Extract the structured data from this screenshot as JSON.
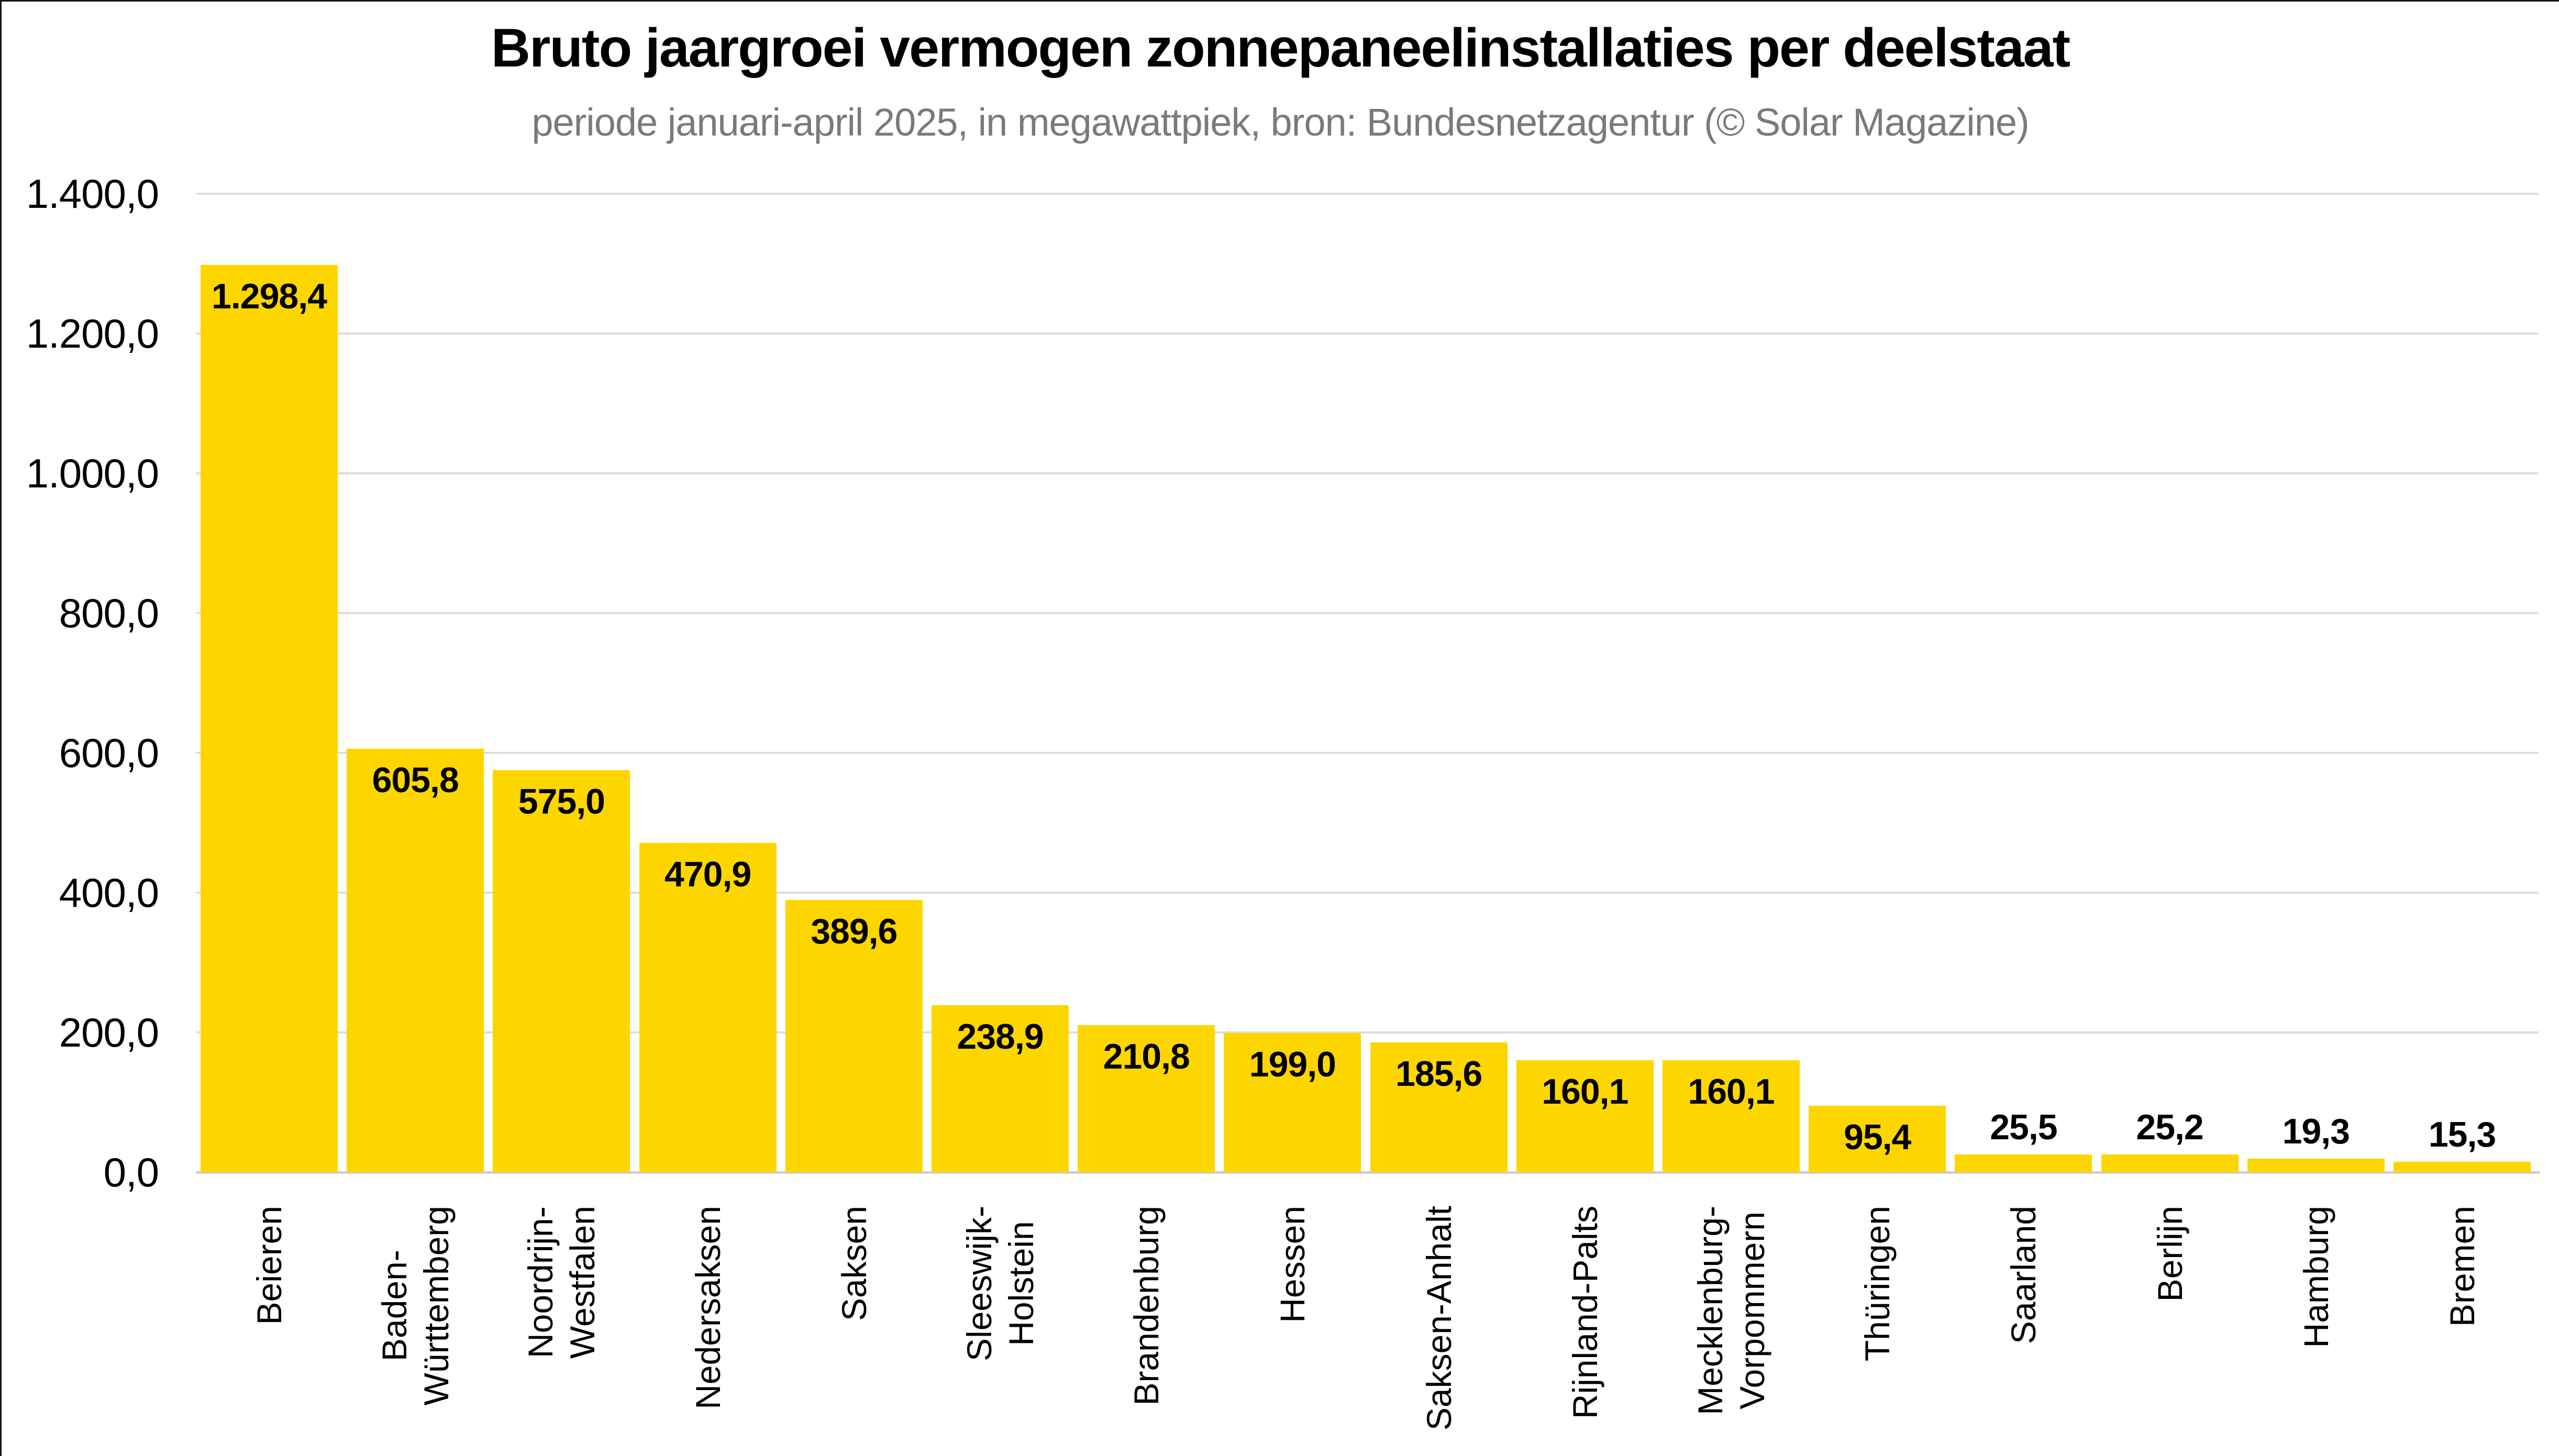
{
  "title": "Bruto jaargroei vermogen zonnepaneelinstallaties per deelstaat",
  "subtitle": "periode januari-april 2025, in megawattpiek, bron: Bundesnetzagentur (© Solar Magazine)",
  "chart_data": {
    "type": "bar",
    "title": "Bruto jaargroei vermogen zonnepaneelinstallaties per deelstaat",
    "subtitle": "periode januari-april 2025, in megawattpiek, bron: Bundesnetzagentur (© Solar Magazine)",
    "categories": [
      "Beieren",
      "Baden-Württemberg",
      "Noordrijn-Westfalen",
      "Nedersaksen",
      "Saksen",
      "Sleeswijk-Holstein",
      "Brandenburg",
      "Hessen",
      "Saksen-Anhalt",
      "Rijnland-Palts",
      "Mecklenburg-Vorpommern",
      "Thüringen",
      "Saarland",
      "Berlijn",
      "Hamburg",
      "Bremen"
    ],
    "category_lines": [
      [
        "Beieren"
      ],
      [
        "Baden-",
        "Württemberg"
      ],
      [
        "Noordrijn-",
        "Westfalen"
      ],
      [
        "Nedersaksen"
      ],
      [
        "Saksen"
      ],
      [
        "Sleeswijk-",
        "Holstein"
      ],
      [
        "Brandenburg"
      ],
      [
        "Hessen"
      ],
      [
        "Saksen-Anhalt"
      ],
      [
        "Rijnland-Palts"
      ],
      [
        "Mecklenburg-",
        "Vorpommern"
      ],
      [
        "Thüringen"
      ],
      [
        "Saarland"
      ],
      [
        "Berlijn"
      ],
      [
        "Hamburg"
      ],
      [
        "Bremen"
      ]
    ],
    "values": [
      1298.4,
      605.8,
      575.0,
      470.9,
      389.6,
      238.9,
      210.8,
      199.0,
      185.6,
      160.1,
      160.1,
      95.4,
      25.5,
      25.2,
      19.3,
      15.3
    ],
    "value_labels": [
      "1.298,4",
      "605,8",
      "575,0",
      "470,9",
      "389,6",
      "238,9",
      "210,8",
      "199,0",
      "185,6",
      "160,1",
      "160,1",
      "95,4",
      "25,5",
      "25,2",
      "19,3",
      "15,3"
    ],
    "xlabel": "",
    "ylabel": "",
    "ylim": [
      0,
      1400
    ],
    "ytick_step": 200,
    "ytick_labels": [
      "0,0",
      "200,0",
      "400,0",
      "600,0",
      "800,0",
      "1.000,0",
      "1.200,0",
      "1.400,0"
    ],
    "grid": true,
    "legend": "none",
    "bar_color": "#FDD600",
    "gridline_color": "#dddddd",
    "axisline_color": "#cfcfcf",
    "value_label_color": "#000000",
    "subtitle_color": "#7a7a7a"
  }
}
